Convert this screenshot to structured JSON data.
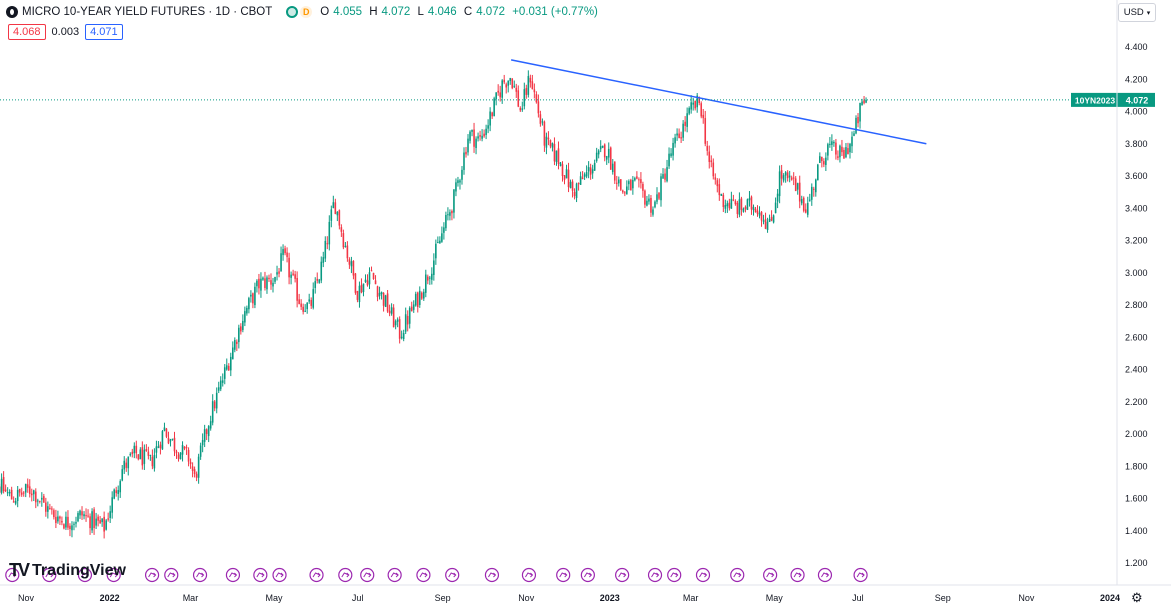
{
  "header": {
    "title": "MICRO 10-YEAR YIELD FUTURES · 1D · CBOT",
    "interval_badge": "D",
    "ohlc": {
      "o_label": "O",
      "o": "4.055",
      "h_label": "H",
      "h": "4.072",
      "l_label": "L",
      "l": "4.046",
      "c_label": "C",
      "c": "4.072",
      "change": "+0.031 (+0.77%)"
    },
    "sell_price": "4.068",
    "spread": "0.003",
    "buy_price": "4.071",
    "currency": "USD",
    "status_color": "#089981",
    "badge_color": "#ff9800"
  },
  "logo": {
    "text": "TradingView"
  },
  "chart_data": {
    "type": "candlestick",
    "title": "MICRO 10-YEAR YIELD FUTURES · 1D · CBOT",
    "ylim": [
      1.15,
      4.5
    ],
    "y_ticks": [
      "4.400",
      "4.200",
      "4.000",
      "3.800",
      "3.600",
      "3.400",
      "3.200",
      "3.000",
      "2.800",
      "2.600",
      "2.400",
      "2.200",
      "2.000",
      "1.800",
      "1.600",
      "1.400",
      "1.200"
    ],
    "x_tick_labels": [
      "Nov",
      "2022",
      "Mar",
      "May",
      "Jul",
      "Sep",
      "Nov",
      "2023",
      "Mar",
      "May",
      "Jul",
      "Sep",
      "Nov",
      "2024"
    ],
    "x_tick_dates": [
      "2021-11-01",
      "2022-01-01",
      "2022-03-01",
      "2022-05-01",
      "2022-07-01",
      "2022-09-01",
      "2022-11-01",
      "2023-01-01",
      "2023-03-01",
      "2023-05-01",
      "2023-07-01",
      "2023-09-01",
      "2023-11-01",
      "2024-01-01"
    ],
    "x_start": "2021-10-01",
    "x_end": "2024-01-01",
    "path_dates": [
      "2021-10-01",
      "2021-10-10",
      "2021-10-22",
      "2021-11-05",
      "2021-11-18",
      "2021-12-01",
      "2021-12-12",
      "2021-12-28",
      "2022-01-10",
      "2022-01-20",
      "2022-01-31",
      "2022-02-10",
      "2022-02-18",
      "2022-02-28",
      "2022-03-04",
      "2022-03-15",
      "2022-03-25",
      "2022-04-08",
      "2022-04-20",
      "2022-05-01",
      "2022-05-08",
      "2022-05-20",
      "2022-05-27",
      "2022-06-06",
      "2022-06-14",
      "2022-06-21",
      "2022-07-01",
      "2022-07-10",
      "2022-07-22",
      "2022-08-01",
      "2022-08-16",
      "2022-08-25",
      "2022-09-10",
      "2022-09-20",
      "2022-09-28",
      "2022-10-05",
      "2022-10-15",
      "2022-10-21",
      "2022-10-28",
      "2022-11-04",
      "2022-11-15",
      "2022-11-25",
      "2022-12-05",
      "2022-12-15",
      "2022-12-29",
      "2023-01-10",
      "2023-01-19",
      "2023-02-02",
      "2023-02-15",
      "2023-03-02",
      "2023-03-08",
      "2023-03-15",
      "2023-03-24",
      "2023-04-05",
      "2023-04-18",
      "2023-04-28",
      "2023-05-05",
      "2023-05-15",
      "2023-05-25",
      "2023-06-02",
      "2023-06-09",
      "2023-06-20",
      "2023-06-28",
      "2023-07-03",
      "2023-07-07"
    ],
    "path_values": [
      1.52,
      1.7,
      1.6,
      1.66,
      1.52,
      1.45,
      1.5,
      1.42,
      1.78,
      1.88,
      1.82,
      2.03,
      1.92,
      1.85,
      1.72,
      2.1,
      2.35,
      2.72,
      2.93,
      2.96,
      3.1,
      2.82,
      2.78,
      3.08,
      3.45,
      3.2,
      2.88,
      3.0,
      2.8,
      2.62,
      2.88,
      3.07,
      3.48,
      3.86,
      3.82,
      3.95,
      4.18,
      4.22,
      4.0,
      4.22,
      3.8,
      3.7,
      3.5,
      3.61,
      3.78,
      3.5,
      3.55,
      3.4,
      3.75,
      4.02,
      4.06,
      3.65,
      3.45,
      3.4,
      3.42,
      3.28,
      3.6,
      3.55,
      3.4,
      3.65,
      3.78,
      3.72,
      3.85,
      4.02,
      4.072
    ],
    "candle_count": 440,
    "last_price": "4.072",
    "last_price_label": "10YN2023",
    "trendline": {
      "start": [
        "2022-10-21",
        4.32
      ],
      "end": [
        "2023-08-20",
        3.8
      ]
    },
    "up_color": "#089981",
    "down_color": "#f23645",
    "trendline_color": "#2962ff",
    "grid": false,
    "event_markers": [
      "2021-10-07",
      "2021-10-22",
      "2021-11-18",
      "2021-12-14",
      "2022-01-04",
      "2022-02-01",
      "2022-02-15",
      "2022-03-08",
      "2022-04-01",
      "2022-04-21",
      "2022-05-05",
      "2022-06-01",
      "2022-06-22",
      "2022-07-08",
      "2022-07-28",
      "2022-08-18",
      "2022-09-08",
      "2022-10-07",
      "2022-11-03",
      "2022-11-28",
      "2022-12-16",
      "2023-01-10",
      "2023-02-03",
      "2023-02-17",
      "2023-03-10",
      "2023-04-04",
      "2023-04-28",
      "2023-05-18",
      "2023-06-07",
      "2023-07-03"
    ]
  }
}
